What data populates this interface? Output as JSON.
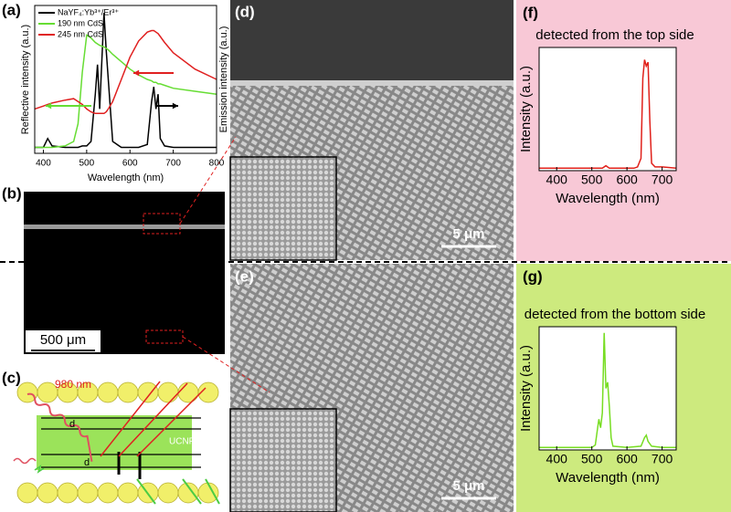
{
  "chart_data": [
    {
      "type": "line",
      "xlabel": "Wavelength (nm)",
      "ylabel": "Reflective intensity (a.u.)",
      "y2label": "Emission intensity (a.u.)",
      "x": [
        380,
        400,
        410,
        420,
        450,
        470,
        480,
        490,
        500,
        510,
        520,
        525,
        530,
        540,
        545,
        550,
        560,
        580,
        600,
        620,
        640,
        650,
        655,
        660,
        665,
        670,
        680,
        700,
        750,
        800
      ],
      "xlim": [
        380,
        800
      ],
      "xticks": [
        400,
        500,
        600,
        700,
        800
      ],
      "ylim": [
        0,
        100
      ],
      "legend": "upper-left",
      "series": [
        {
          "name": "NaYF₄:Yb³⁺/Er³⁺",
          "color": "#000000",
          "values": [
            4,
            4,
            10,
            5,
            4,
            4,
            4,
            5,
            5,
            8,
            40,
            60,
            30,
            95,
            70,
            50,
            8,
            4,
            4,
            4,
            6,
            35,
            45,
            30,
            40,
            10,
            5,
            4,
            4,
            4
          ]
        },
        {
          "name": "190 nm CdS",
          "color": "#66dd33",
          "values": [
            4,
            4,
            4,
            4,
            5,
            8,
            20,
            55,
            80,
            78,
            75,
            74,
            73,
            72,
            71,
            70,
            67,
            62,
            57,
            53,
            50,
            49,
            48,
            48,
            47,
            47,
            46,
            44,
            42,
            40
          ]
        },
        {
          "name": "245 nm CdS",
          "color": "#e02020",
          "values": [
            30,
            32,
            33,
            34,
            36,
            37,
            35,
            33,
            30,
            28,
            27,
            27,
            27,
            27,
            28,
            30,
            35,
            50,
            65,
            76,
            82,
            83,
            83,
            82,
            81,
            79,
            75,
            68,
            57,
            50
          ]
        }
      ]
    },
    {
      "type": "line",
      "title": "detected from the top side",
      "xlabel": "Wavelength (nm)",
      "ylabel": "Intensity (a.u.)",
      "background": "#f8c8d6",
      "x": [
        350,
        400,
        450,
        500,
        530,
        540,
        550,
        600,
        620,
        630,
        640,
        645,
        650,
        655,
        660,
        665,
        670,
        680,
        700,
        740
      ],
      "xlim": [
        350,
        740
      ],
      "xticks": [
        400,
        500,
        600,
        700
      ],
      "ylim": [
        0,
        100
      ],
      "series": [
        {
          "color": "#e0201a",
          "values": [
            2,
            2,
            2,
            2,
            2,
            4,
            2,
            2,
            2,
            3,
            10,
            75,
            90,
            85,
            88,
            40,
            6,
            3,
            3,
            2
          ]
        }
      ]
    },
    {
      "type": "line",
      "title": "detected from the bottom side",
      "xlabel": "Wavelength (nm)",
      "ylabel": "Intensity (a.u.)",
      "background": "#cdea7e",
      "x": [
        350,
        400,
        450,
        480,
        500,
        510,
        515,
        520,
        525,
        530,
        535,
        540,
        545,
        550,
        555,
        560,
        600,
        640,
        650,
        655,
        660,
        670,
        700,
        740
      ],
      "xlim": [
        350,
        740
      ],
      "xticks": [
        400,
        500,
        600,
        700
      ],
      "ylim": [
        0,
        100
      ],
      "series": [
        {
          "color": "#77dd22",
          "values": [
            2,
            2,
            2,
            2,
            2,
            4,
            15,
            25,
            18,
            30,
            95,
            50,
            55,
            35,
            10,
            3,
            2,
            3,
            10,
            12,
            7,
            3,
            2,
            2
          ]
        }
      ]
    }
  ],
  "labels": {
    "a": "(a)",
    "b": "(b)",
    "c": "(c)",
    "d": "(d)",
    "e": "(e)",
    "f": "(f)",
    "g": "(g)",
    "scale_b": "500 μm",
    "scale_d": "5 μm",
    "scale_e": "5 μm",
    "laser": "980 nm",
    "ucnps": "UCNPs",
    "d1": "d",
    "d2": "d"
  }
}
